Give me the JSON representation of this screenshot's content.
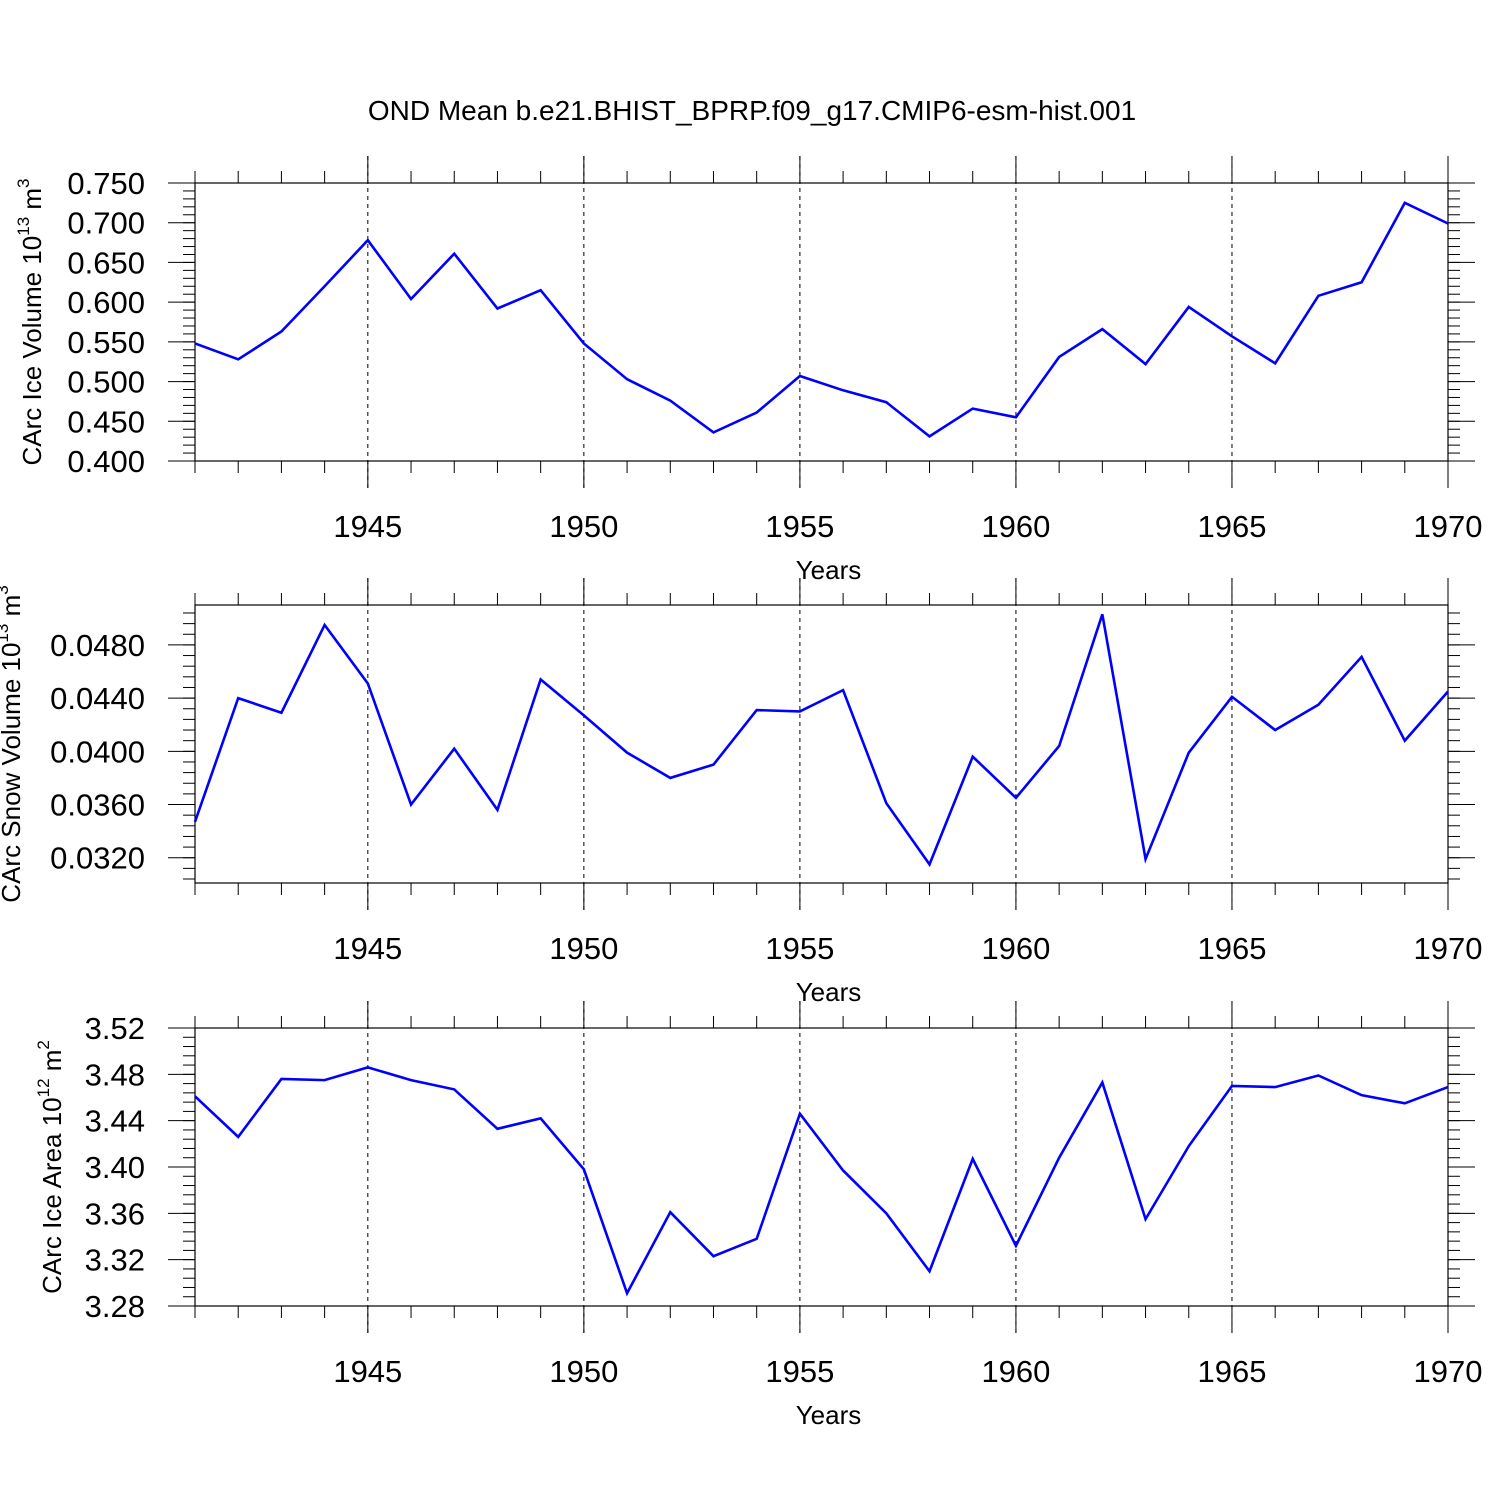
{
  "title": "OND Mean b.e21.BHIST_BPRP.f09_g17.CMIP6-esm-hist.001",
  "line_color": "#0000ff",
  "chart_data": [
    {
      "type": "line",
      "xlabel": "Years",
      "ylabel": "CArc Ice Volume 10",
      "ylabel_exp": "13",
      "ylabel_unit": " m",
      "ylabel_unit_exp": "3",
      "xlim": [
        1941,
        1970
      ],
      "ylim": [
        0.4,
        0.75
      ],
      "yticks": [
        0.4,
        0.45,
        0.5,
        0.55,
        0.6,
        0.65,
        0.7,
        0.75
      ],
      "ytick_labels": [
        "0.400",
        "0.450",
        "0.500",
        "0.550",
        "0.600",
        "0.650",
        "0.700",
        "0.750"
      ],
      "xticks": [
        1945,
        1950,
        1955,
        1960,
        1965,
        1970
      ],
      "xtick_labels": [
        "1945",
        "1950",
        "1955",
        "1960",
        "1965",
        "1970"
      ],
      "grid": "vertical dashed at major x ticks",
      "x": [
        1941,
        1942,
        1943,
        1944,
        1945,
        1946,
        1947,
        1948,
        1949,
        1950,
        1951,
        1952,
        1953,
        1954,
        1955,
        1956,
        1957,
        1958,
        1959,
        1960,
        1961,
        1962,
        1963,
        1964,
        1965,
        1966,
        1967,
        1968,
        1969,
        1970
      ],
      "series": [
        {
          "values": [
            0.548,
            0.528,
            0.563,
            0.62,
            0.678,
            0.604,
            0.661,
            0.592,
            0.615,
            0.548,
            0.503,
            0.476,
            0.436,
            0.461,
            0.507,
            0.489,
            0.474,
            0.431,
            0.466,
            0.455,
            0.531,
            0.566,
            0.522,
            0.594,
            0.557,
            0.523,
            0.608,
            0.625,
            0.725,
            0.699
          ]
        }
      ]
    },
    {
      "type": "line",
      "xlabel": "Years",
      "ylabel": "CArc Snow Volume 10",
      "ylabel_exp": "13",
      "ylabel_unit": " m",
      "ylabel_unit_exp": "3",
      "xlim": [
        1941,
        1970
      ],
      "ylim": [
        0.0301,
        0.051
      ],
      "yticks": [
        0.032,
        0.036,
        0.04,
        0.044,
        0.048
      ],
      "ytick_labels": [
        "0.0320",
        "0.0360",
        "0.0400",
        "0.0440",
        "0.0480"
      ],
      "xticks": [
        1945,
        1950,
        1955,
        1960,
        1965,
        1970
      ],
      "xtick_labels": [
        "1945",
        "1950",
        "1955",
        "1960",
        "1965",
        "1970"
      ],
      "grid": "vertical dashed at major x ticks",
      "x": [
        1941,
        1942,
        1943,
        1944,
        1945,
        1946,
        1947,
        1948,
        1949,
        1950,
        1951,
        1952,
        1953,
        1954,
        1955,
        1956,
        1957,
        1958,
        1959,
        1960,
        1961,
        1962,
        1963,
        1964,
        1965,
        1966,
        1967,
        1968,
        1969,
        1970
      ],
      "series": [
        {
          "values": [
            0.0347,
            0.044,
            0.0429,
            0.0495,
            0.0451,
            0.036,
            0.0402,
            0.0356,
            0.0454,
            0.0427,
            0.0399,
            0.038,
            0.039,
            0.0431,
            0.043,
            0.0446,
            0.0361,
            0.0315,
            0.0396,
            0.0365,
            0.0404,
            0.0503,
            0.0319,
            0.0399,
            0.0441,
            0.0416,
            0.0435,
            0.0471,
            0.0408,
            0.0445
          ]
        }
      ]
    },
    {
      "type": "line",
      "xlabel": "Years",
      "ylabel": "CArc Ice Area 10",
      "ylabel_exp": "12",
      "ylabel_unit": " m",
      "ylabel_unit_exp": "2",
      "xlim": [
        1941,
        1970
      ],
      "ylim": [
        3.28,
        3.52
      ],
      "yticks": [
        3.28,
        3.32,
        3.36,
        3.4,
        3.44,
        3.48,
        3.52
      ],
      "ytick_labels": [
        "3.28",
        "3.32",
        "3.36",
        "3.40",
        "3.44",
        "3.48",
        "3.52"
      ],
      "xticks": [
        1945,
        1950,
        1955,
        1960,
        1965,
        1970
      ],
      "xtick_labels": [
        "1945",
        "1950",
        "1955",
        "1960",
        "1965",
        "1970"
      ],
      "grid": "vertical dashed at major x ticks",
      "x": [
        1941,
        1942,
        1943,
        1944,
        1945,
        1946,
        1947,
        1948,
        1949,
        1950,
        1951,
        1952,
        1953,
        1954,
        1955,
        1956,
        1957,
        1958,
        1959,
        1960,
        1961,
        1962,
        1963,
        1964,
        1965,
        1966,
        1967,
        1968,
        1969,
        1970
      ],
      "series": [
        {
          "values": [
            3.461,
            3.426,
            3.476,
            3.475,
            3.486,
            3.475,
            3.467,
            3.433,
            3.442,
            3.398,
            3.291,
            3.361,
            3.323,
            3.338,
            3.446,
            3.397,
            3.36,
            3.31,
            3.407,
            3.332,
            3.408,
            3.473,
            3.355,
            3.418,
            3.47,
            3.469,
            3.479,
            3.462,
            3.455,
            3.469
          ]
        }
      ]
    }
  ]
}
